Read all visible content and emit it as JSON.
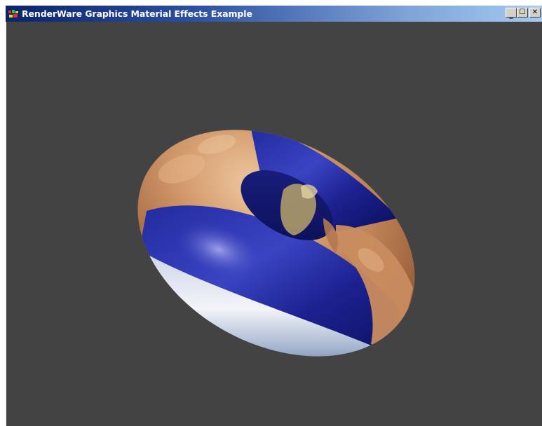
{
  "window": {
    "title": "RenderWare Graphics Material Effects Example",
    "app_icon": "renderware-app-icon",
    "caption_buttons": [
      {
        "name": "minimize",
        "glyph": "_",
        "icon": "minimize-icon"
      },
      {
        "name": "maximize",
        "glyph": "☐",
        "icon": "maximize-icon"
      },
      {
        "name": "close",
        "glyph": "✕",
        "icon": "close-icon"
      }
    ]
  },
  "viewport": {
    "background_color": "#434343",
    "scene_object": "textured-torus",
    "materials": [
      "copper-bump-texture",
      "earth-environment-map"
    ],
    "colors": {
      "copper": "#c08a60",
      "earth_blue": "#1f24a0",
      "cloud_white": "#e8ecf4"
    }
  }
}
